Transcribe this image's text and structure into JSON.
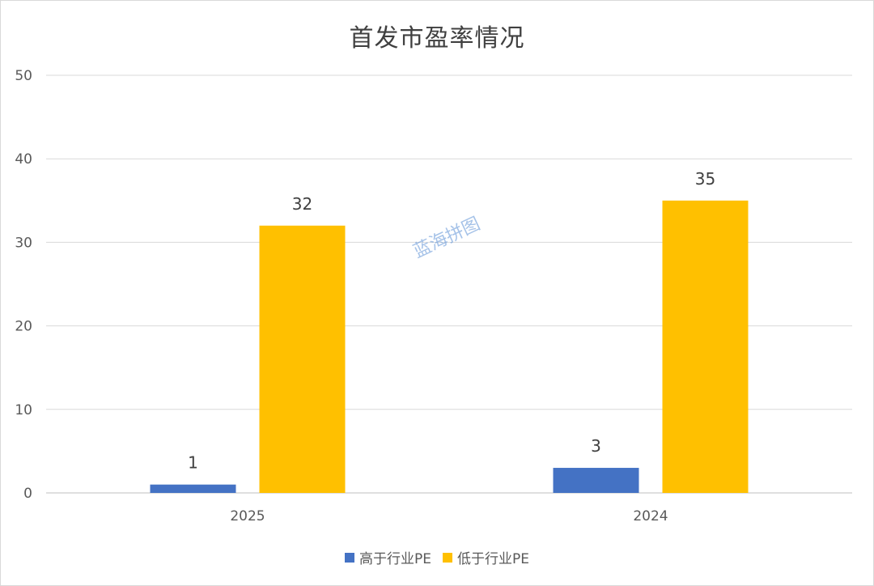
{
  "chart_data": {
    "type": "bar",
    "title": "首发市盈率情况",
    "categories": [
      "2025",
      "2024"
    ],
    "series": [
      {
        "name": "高于行业PE",
        "values": [
          1,
          3
        ],
        "color": "#4472c4"
      },
      {
        "name": "低于行业PE",
        "values": [
          32,
          35
        ],
        "color": "#ffc000"
      }
    ],
    "ylim": [
      0,
      50
    ],
    "yticks": [
      0,
      10,
      20,
      30,
      40,
      50
    ],
    "grid": true,
    "legend_position": "bottom",
    "data_labels": true,
    "xlabel": "",
    "ylabel": ""
  },
  "watermark": "蓝海拼图"
}
